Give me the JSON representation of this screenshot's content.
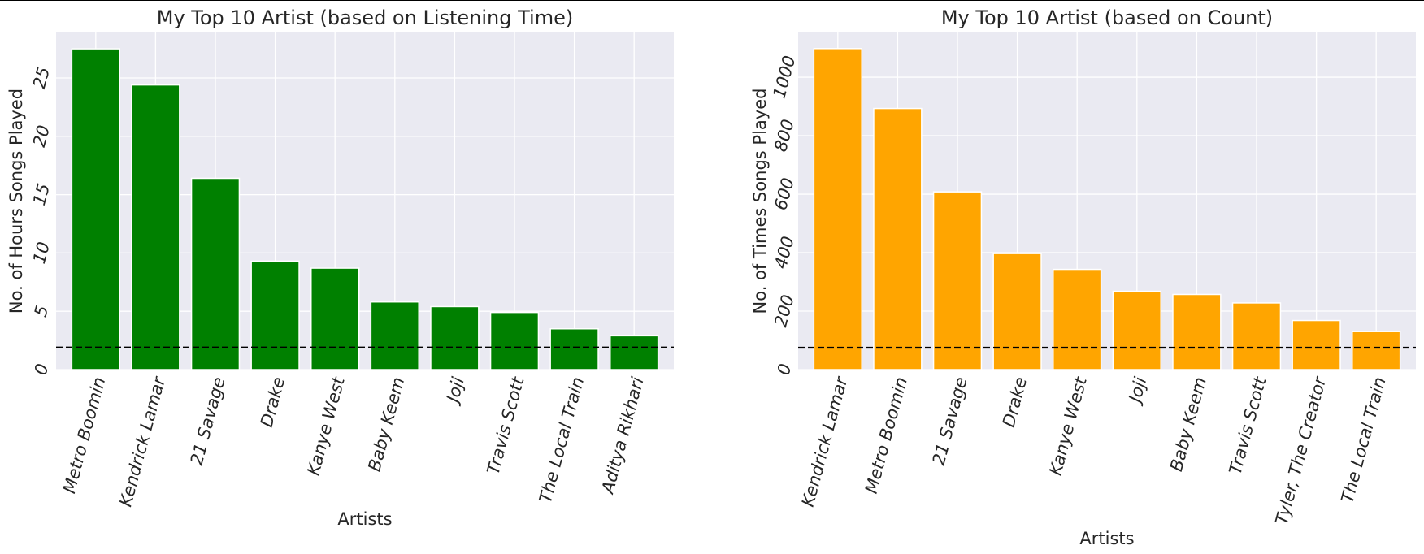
{
  "chart_data": [
    {
      "type": "bar",
      "title": "My Top 10 Artist (based on Listening Time)",
      "xlabel": "Artists",
      "ylabel": "No. of Hours Songs Played",
      "categories": [
        "Metro Boomin",
        "Kendrick Lamar",
        "21 Savage",
        "Drake",
        "Kanye West",
        "Baby Keem",
        "Joji",
        "Travis Scott",
        "The Local Train",
        "Aditya Rikhari"
      ],
      "values": [
        27.5,
        24.4,
        16.4,
        9.3,
        8.7,
        5.8,
        5.4,
        4.9,
        3.5,
        2.9
      ],
      "color": "#008000",
      "yticks": [
        0,
        5,
        10,
        15,
        20,
        25
      ],
      "ylim": [
        0,
        28.9
      ],
      "reference_line": 1.9,
      "grid": true
    },
    {
      "type": "bar",
      "title": "My Top 10 Artist (based on Count)",
      "xlabel": "Artists",
      "ylabel": "No. of Times Songs Played",
      "categories": [
        "Kendrick Lamar",
        "Metro Boomin",
        "21 Savage",
        "Drake",
        "Kanye West",
        "Joji",
        "Baby Keem",
        "Travis Scott",
        "Tyler, The Creator",
        "The Local Train"
      ],
      "values": [
        1098,
        893,
        608,
        397,
        343,
        268,
        257,
        228,
        168,
        130
      ],
      "color": "#FFA500",
      "yticks": [
        0,
        200,
        400,
        600,
        800,
        1000
      ],
      "ylim": [
        0,
        1153
      ],
      "reference_line": 75,
      "grid": true
    }
  ]
}
